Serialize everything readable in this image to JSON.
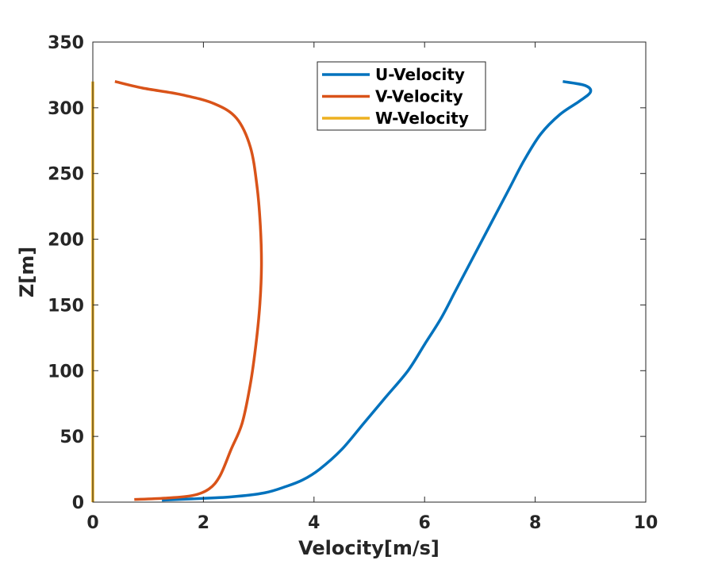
{
  "chart_data": {
    "type": "line",
    "xlabel": "Velocity[m/s]",
    "ylabel": "Z[m]",
    "xlim": [
      0,
      10
    ],
    "ylim": [
      0,
      350
    ],
    "xticks": [
      0,
      2,
      4,
      6,
      8,
      10
    ],
    "yticks": [
      0,
      50,
      100,
      150,
      200,
      250,
      300,
      350
    ],
    "grid": false,
    "legend_position": "top-center",
    "series": [
      {
        "name": "U-Velocity",
        "color": "#0072BD",
        "points": [
          [
            1.25,
            1.5
          ],
          [
            1.8,
            2.5
          ],
          [
            2.5,
            4
          ],
          [
            3.1,
            7
          ],
          [
            3.5,
            12
          ],
          [
            3.8,
            17
          ],
          [
            4.1,
            25
          ],
          [
            4.5,
            40
          ],
          [
            4.9,
            60
          ],
          [
            5.3,
            80
          ],
          [
            5.7,
            100
          ],
          [
            6.0,
            120
          ],
          [
            6.3,
            140
          ],
          [
            6.55,
            160
          ],
          [
            6.8,
            180
          ],
          [
            7.05,
            200
          ],
          [
            7.3,
            220
          ],
          [
            7.55,
            240
          ],
          [
            7.8,
            260
          ],
          [
            8.1,
            280
          ],
          [
            8.45,
            295
          ],
          [
            8.8,
            305
          ],
          [
            9.0,
            312
          ],
          [
            8.9,
            317
          ],
          [
            8.5,
            320
          ]
        ]
      },
      {
        "name": "V-Velocity",
        "color": "#D95319",
        "points": [
          [
            0.75,
            2
          ],
          [
            1.3,
            3
          ],
          [
            1.8,
            5
          ],
          [
            2.1,
            10
          ],
          [
            2.3,
            20
          ],
          [
            2.5,
            40
          ],
          [
            2.7,
            60
          ],
          [
            2.85,
            90
          ],
          [
            2.95,
            120
          ],
          [
            3.02,
            150
          ],
          [
            3.05,
            180
          ],
          [
            3.03,
            210
          ],
          [
            2.97,
            240
          ],
          [
            2.85,
            270
          ],
          [
            2.6,
            292
          ],
          [
            2.2,
            303
          ],
          [
            1.6,
            310
          ],
          [
            0.9,
            315
          ],
          [
            0.4,
            320
          ]
        ]
      },
      {
        "name": "W-Velocity",
        "color": "#EDB120",
        "points": [
          [
            0,
            0
          ],
          [
            0,
            320
          ]
        ]
      }
    ]
  }
}
